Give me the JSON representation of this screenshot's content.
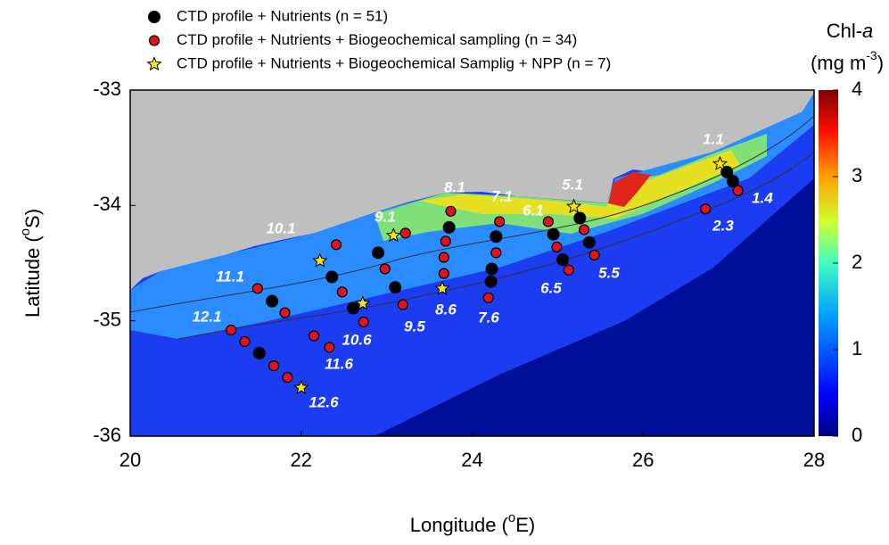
{
  "chart_data": {
    "type": "scatter",
    "xlabel": [
      "Longitude (",
      "o",
      "E)"
    ],
    "ylabel": [
      "Latitude (",
      "o",
      "S)"
    ],
    "xlim": [
      20,
      28
    ],
    "xticks": [
      20,
      22,
      24,
      26,
      28
    ],
    "ylim": [
      -36,
      -33
    ],
    "yticks": [
      -33,
      -34,
      -35,
      -36
    ],
    "colorbar": {
      "title": [
        "Chl-",
        "a"
      ],
      "units": [
        "(mg m",
        "-3",
        ")"
      ],
      "lim": [
        0,
        4
      ],
      "ticks": [
        0,
        1,
        2,
        3,
        4
      ]
    },
    "series": [
      {
        "name": "CTD profile + Nutrients (n = 51)",
        "color": "#000000",
        "marker": "circle",
        "x": [
          26.98,
          27.05,
          25.26,
          25.37,
          24.95,
          25.06,
          24.28,
          24.23,
          24.22,
          23.73,
          22.9,
          23.1,
          22.36,
          22.61,
          21.66,
          21.51
        ],
        "y": [
          -33.71,
          -33.79,
          -34.11,
          -34.32,
          -34.25,
          -34.47,
          -34.27,
          -34.55,
          -34.66,
          -34.19,
          -34.41,
          -34.71,
          -34.62,
          -34.89,
          -34.83,
          -35.28
        ]
      },
      {
        "name": "CTD profile + Nutrients + Biogeochemical sampling (n = 34)",
        "color": "#e0141b",
        "marker": "circle",
        "x": [
          27.11,
          26.73,
          25.31,
          25.43,
          24.89,
          24.99,
          25.13,
          24.32,
          24.28,
          24.19,
          23.75,
          23.69,
          23.67,
          23.67,
          23.22,
          22.98,
          23.19,
          22.41,
          22.48,
          22.73,
          21.49,
          21.81,
          22.15,
          22.33,
          21.18,
          21.34,
          21.68,
          21.84
        ],
        "y": [
          -33.87,
          -34.03,
          -34.21,
          -34.43,
          -34.14,
          -34.36,
          -34.56,
          -34.14,
          -34.41,
          -34.8,
          -34.05,
          -34.31,
          -34.45,
          -34.59,
          -34.24,
          -34.55,
          -34.86,
          -34.34,
          -34.75,
          -35.01,
          -34.72,
          -34.93,
          -35.13,
          -35.23,
          -35.08,
          -35.18,
          -35.39,
          -35.49
        ]
      },
      {
        "name": "CTD profile + Nutrients + Biogeochemical Samplig + NPP (n = 7)",
        "color": "#f7e51b",
        "marker": "star",
        "x": [
          26.9,
          25.19,
          23.65,
          23.08,
          22.22,
          22.72,
          22.0
        ],
        "y": [
          -33.64,
          -34.01,
          -34.72,
          -34.26,
          -34.48,
          -34.85,
          -35.58
        ]
      }
    ],
    "annotations": [
      "1.1",
      "1.4",
      "2.3",
      "5.1",
      "5.5",
      "6.1",
      "6.5",
      "7.1",
      "7.6",
      "8.1",
      "8.6",
      "9.1",
      "9.5",
      "10.1",
      "10.6",
      "11.1",
      "11.6",
      "12.1",
      "12.6"
    ]
  }
}
